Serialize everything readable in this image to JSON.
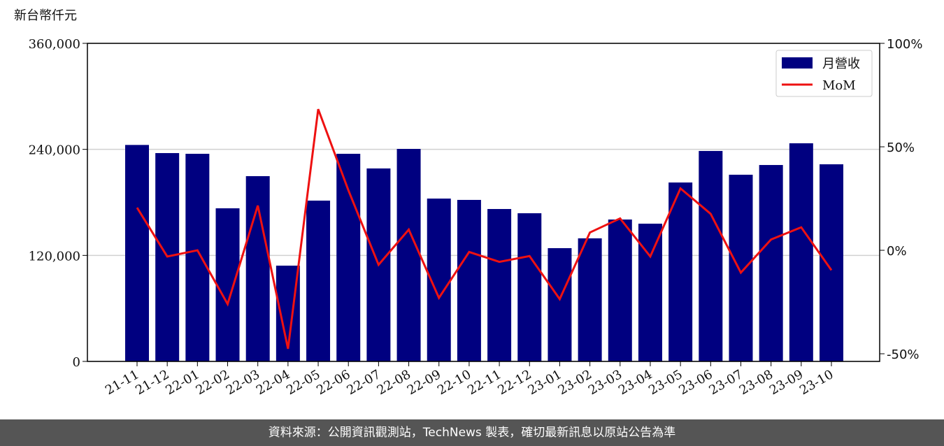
{
  "chart_data": {
    "type": "bar-line",
    "y_label": "新台幣仟元",
    "footer": "資料來源：公開資訊觀測站，TechNews 製表，確切最新訊息以原站公告為準",
    "categories": [
      "21-11",
      "21-12",
      "22-01",
      "22-02",
      "22-03",
      "22-04",
      "22-05",
      "22-06",
      "22-07",
      "22-08",
      "22-09",
      "22-10",
      "22-11",
      "22-12",
      "23-01",
      "23-02",
      "23-03",
      "23-04",
      "23-05",
      "23-06",
      "23-07",
      "23-08",
      "23-09",
      "23-10"
    ],
    "series": [
      {
        "name": "月營收",
        "type": "bar",
        "color": "#000080",
        "values": [
          245000,
          235800,
          235000,
          173300,
          209700,
          108400,
          182000,
          235000,
          218400,
          240500,
          184300,
          182800,
          172500,
          167700,
          128200,
          139300,
          160600,
          155900,
          202500,
          238200,
          211300,
          222300,
          246900,
          223100
        ]
      },
      {
        "name": "MoM",
        "type": "line",
        "axis": "y2",
        "color": "#ee1111",
        "values": [
          20.6,
          -3,
          0,
          -26,
          21.6,
          -47.6,
          68.2,
          29,
          -7,
          10,
          -23,
          -0.8,
          -5.6,
          -2.8,
          -23.6,
          8.6,
          15.4,
          -3,
          29.9,
          17.6,
          -10.8,
          5.2,
          11.1,
          -9.6
        ]
      }
    ],
    "ylim": [
      0,
      360000
    ],
    "yticks": [
      0,
      {
        "value": 120000,
        "label": "120,000"
      },
      {
        "value": 240000,
        "label": "240,000"
      },
      {
        "value": 360000,
        "label": "360,000"
      }
    ],
    "y2lim": [
      -53.7,
      100
    ],
    "y2ticks": [
      {
        "value": -50,
        "label": "-50%"
      },
      {
        "value": 0,
        "label": "0%"
      },
      {
        "value": 50,
        "label": "50%"
      },
      {
        "value": 100,
        "label": "100%"
      }
    ],
    "grid": true,
    "legend": "upper-right"
  }
}
